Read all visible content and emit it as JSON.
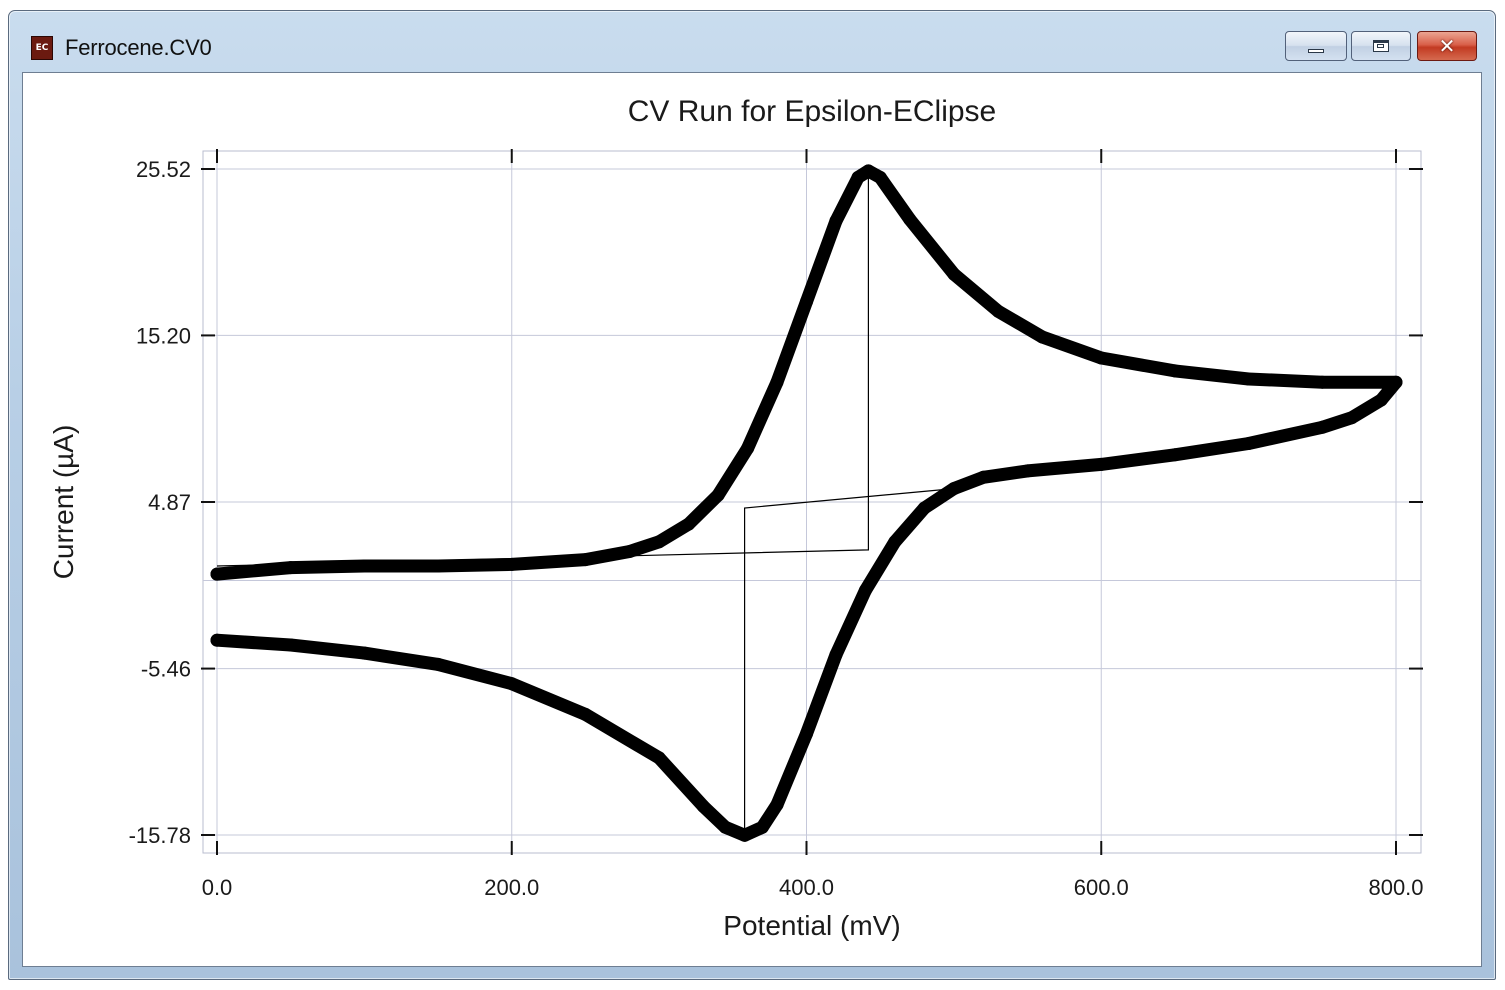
{
  "window": {
    "title": "Ferrocene.CV0",
    "icon": "ec-app-icon",
    "icon_text": "EC",
    "close_glyph": "✕",
    "controls": [
      "minimize",
      "maximize",
      "close"
    ]
  },
  "chart_data": {
    "type": "line",
    "title": "CV Run for Epsilon-EClipse",
    "xlabel": "Potential (mV)",
    "ylabel": "Current (µA)",
    "xlim": [
      0.0,
      800.0
    ],
    "ylim": [
      -15.78,
      25.52
    ],
    "x_ticks": [
      "0.0",
      "200.0",
      "400.0",
      "600.0",
      "800.0"
    ],
    "y_ticks": [
      "25.52",
      "15.20",
      "4.87",
      "-5.46",
      "-15.78"
    ],
    "x_tick_values": [
      0,
      200,
      400,
      600,
      800
    ],
    "y_tick_values": [
      25.52,
      15.2,
      4.87,
      -5.46,
      -15.78
    ],
    "grid": true,
    "series_color": "#000000",
    "series": [
      {
        "values": [
          [
            0,
            0.4
          ],
          [
            50,
            0.8
          ],
          [
            100,
            0.9
          ],
          [
            150,
            0.9
          ],
          [
            200,
            1.0
          ],
          [
            250,
            1.3
          ],
          [
            280,
            1.8
          ],
          [
            300,
            2.4
          ],
          [
            320,
            3.5
          ],
          [
            340,
            5.3
          ],
          [
            360,
            8.2
          ],
          [
            380,
            12.3
          ],
          [
            400,
            17.3
          ],
          [
            420,
            22.3
          ],
          [
            435,
            25.0
          ],
          [
            442,
            25.4
          ],
          [
            450,
            25.0
          ],
          [
            470,
            22.4
          ],
          [
            500,
            19.0
          ],
          [
            530,
            16.7
          ],
          [
            560,
            15.1
          ],
          [
            600,
            13.8
          ],
          [
            650,
            13.0
          ],
          [
            700,
            12.5
          ],
          [
            750,
            12.3
          ],
          [
            800,
            12.3
          ],
          [
            790,
            11.2
          ],
          [
            770,
            10.1
          ],
          [
            750,
            9.5
          ],
          [
            700,
            8.5
          ],
          [
            650,
            7.8
          ],
          [
            600,
            7.2
          ],
          [
            550,
            6.8
          ],
          [
            520,
            6.4
          ],
          [
            500,
            5.7
          ],
          [
            480,
            4.5
          ],
          [
            460,
            2.4
          ],
          [
            440,
            -0.6
          ],
          [
            420,
            -4.6
          ],
          [
            400,
            -9.5
          ],
          [
            380,
            -13.9
          ],
          [
            370,
            -15.3
          ],
          [
            358,
            -15.8
          ],
          [
            345,
            -15.3
          ],
          [
            330,
            -14.0
          ],
          [
            300,
            -11.0
          ],
          [
            250,
            -8.3
          ],
          [
            200,
            -6.4
          ],
          [
            150,
            -5.2
          ],
          [
            100,
            -4.5
          ],
          [
            50,
            -4.0
          ],
          [
            0,
            -3.7
          ]
        ]
      }
    ],
    "baseline_lines": [
      [
        [
          0,
          0.9
        ],
        [
          442,
          1.9
        ],
        [
          442,
          25.4
        ]
      ],
      [
        [
          358,
          -15.8
        ],
        [
          358,
          4.5
        ],
        [
          500,
          5.7
        ]
      ]
    ]
  }
}
